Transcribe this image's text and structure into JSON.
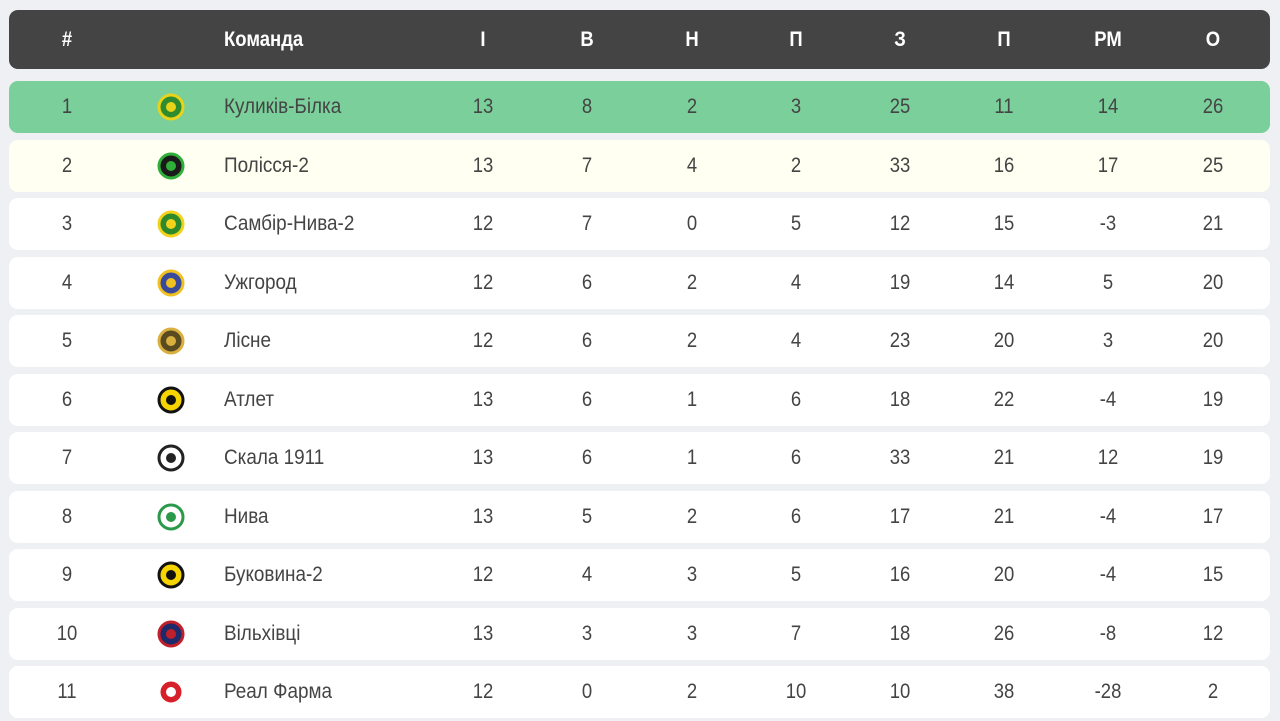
{
  "header": {
    "pos": "#",
    "team": "Команда",
    "cols": [
      "І",
      "В",
      "Н",
      "П",
      "З",
      "П",
      "РМ",
      "О"
    ]
  },
  "colors": {
    "header_bg": "#444444",
    "leader_row": "#7acf9a",
    "second_row": "#fffff2",
    "row": "#ffffff",
    "page_bg": "#eff0f4"
  },
  "rows": [
    {
      "pos": "1",
      "team": "Куликів-Білка",
      "logo": "kulykiv-bilka-crest-icon",
      "stats": [
        "13",
        "8",
        "2",
        "3",
        "25",
        "11",
        "14",
        "26"
      ]
    },
    {
      "pos": "2",
      "team": "Полісся-2",
      "logo": "polissia-crest-icon",
      "stats": [
        "13",
        "7",
        "4",
        "2",
        "33",
        "16",
        "17",
        "25"
      ]
    },
    {
      "pos": "3",
      "team": "Самбір-Нива-2",
      "logo": "sambir-nyva-crest-icon",
      "stats": [
        "12",
        "7",
        "0",
        "5",
        "12",
        "15",
        "-3",
        "21"
      ]
    },
    {
      "pos": "4",
      "team": "Ужгород",
      "logo": "uzhhorod-crest-icon",
      "stats": [
        "12",
        "6",
        "2",
        "4",
        "19",
        "14",
        "5",
        "20"
      ]
    },
    {
      "pos": "5",
      "team": "Лісне",
      "logo": "lisne-crest-icon",
      "stats": [
        "12",
        "6",
        "2",
        "4",
        "23",
        "20",
        "3",
        "20"
      ]
    },
    {
      "pos": "6",
      "team": "Атлет",
      "logo": "atlet-crest-icon",
      "stats": [
        "13",
        "6",
        "1",
        "6",
        "18",
        "22",
        "-4",
        "19"
      ]
    },
    {
      "pos": "7",
      "team": "Скала 1911",
      "logo": "skala-crest-icon",
      "stats": [
        "13",
        "6",
        "1",
        "6",
        "33",
        "21",
        "12",
        "19"
      ]
    },
    {
      "pos": "8",
      "team": "Нива",
      "logo": "nyva-crest-icon",
      "stats": [
        "13",
        "5",
        "2",
        "6",
        "17",
        "21",
        "-4",
        "17"
      ]
    },
    {
      "pos": "9",
      "team": "Буковина-2",
      "logo": "bukovyna-crest-icon",
      "stats": [
        "12",
        "4",
        "3",
        "5",
        "16",
        "20",
        "-4",
        "15"
      ]
    },
    {
      "pos": "10",
      "team": "Вільхівці",
      "logo": "vilkhivtsi-crest-icon",
      "stats": [
        "13",
        "3",
        "3",
        "7",
        "18",
        "26",
        "-8",
        "12"
      ]
    },
    {
      "pos": "11",
      "team": "Реал Фарма",
      "logo": "real-farma-crest-icon",
      "stats": [
        "12",
        "0",
        "2",
        "10",
        "10",
        "38",
        "-28",
        "2"
      ]
    }
  ]
}
